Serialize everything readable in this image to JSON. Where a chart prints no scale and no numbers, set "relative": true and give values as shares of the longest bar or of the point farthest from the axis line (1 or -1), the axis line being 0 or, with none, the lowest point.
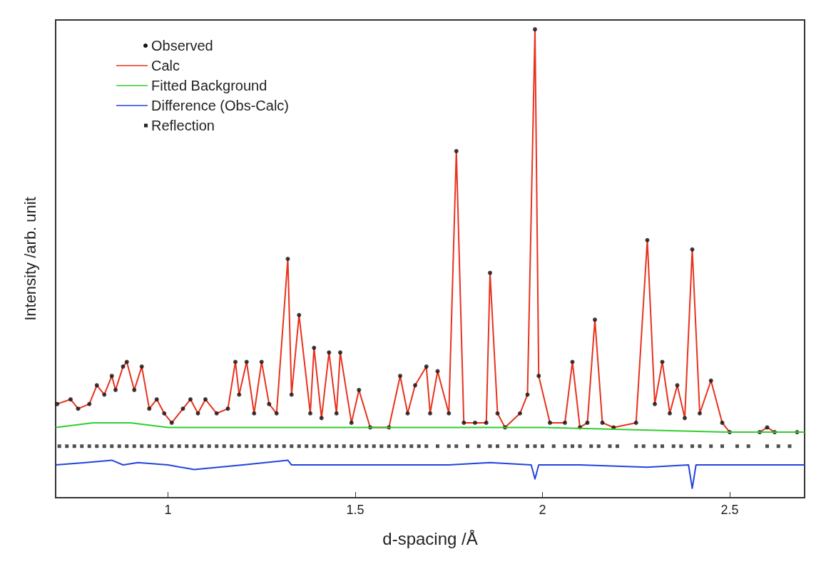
{
  "chart_data": {
    "type": "line",
    "relative": true,
    "xlabel": "d-spacing /Å",
    "ylabel": "Intensity /arb. unit",
    "xlim": [
      0.7,
      2.7
    ],
    "xticks": [
      1,
      1.5,
      2,
      2.5
    ],
    "grid": false,
    "legend": "top left",
    "tick_labels": "x",
    "series": [
      {
        "name": "Calc",
        "type": "line",
        "color": "#e8321e",
        "line_style": "solid",
        "x": [
          0.704,
          0.74,
          0.76,
          0.79,
          0.81,
          0.83,
          0.85,
          0.86,
          0.88,
          0.89,
          0.91,
          0.93,
          0.95,
          0.97,
          0.99,
          1.01,
          1.04,
          1.06,
          1.08,
          1.1,
          1.13,
          1.16,
          1.18,
          1.19,
          1.21,
          1.23,
          1.25,
          1.27,
          1.29,
          1.32,
          1.33,
          1.35,
          1.38,
          1.39,
          1.41,
          1.43,
          1.45,
          1.46,
          1.49,
          1.51,
          1.54,
          1.59,
          1.62,
          1.64,
          1.66,
          1.69,
          1.7,
          1.72,
          1.75,
          1.77,
          1.79,
          1.82,
          1.85,
          1.86,
          1.88,
          1.9,
          1.94,
          1.96,
          1.98,
          1.99,
          2.02,
          2.06,
          2.08,
          2.1,
          2.12,
          2.14,
          2.16,
          2.19,
          2.25,
          2.28,
          2.3,
          2.32,
          2.34,
          2.36,
          2.38,
          2.4,
          2.42,
          2.45,
          2.48,
          2.5,
          2.58,
          2.6,
          2.62,
          2.68
        ],
        "values": [
          0.2,
          0.21,
          0.19,
          0.2,
          0.24,
          0.22,
          0.26,
          0.23,
          0.28,
          0.29,
          0.23,
          0.28,
          0.19,
          0.21,
          0.18,
          0.16,
          0.19,
          0.21,
          0.18,
          0.21,
          0.18,
          0.19,
          0.29,
          0.22,
          0.29,
          0.18,
          0.29,
          0.2,
          0.18,
          0.51,
          0.22,
          0.39,
          0.18,
          0.32,
          0.17,
          0.31,
          0.18,
          0.31,
          0.16,
          0.23,
          0.15,
          0.15,
          0.26,
          0.18,
          0.24,
          0.28,
          0.18,
          0.27,
          0.18,
          0.74,
          0.16,
          0.16,
          0.16,
          0.48,
          0.18,
          0.15,
          0.18,
          0.22,
          1.0,
          0.26,
          0.16,
          0.16,
          0.29,
          0.15,
          0.16,
          0.38,
          0.16,
          0.15,
          0.16,
          0.55,
          0.2,
          0.29,
          0.18,
          0.24,
          0.17,
          0.53,
          0.18,
          0.25,
          0.16,
          0.14,
          0.14,
          0.15,
          0.14,
          0.14
        ]
      },
      {
        "name": "Observed",
        "type": "scatter",
        "marker": "circle",
        "color": "#111111",
        "x": [
          0.704,
          0.74,
          0.76,
          0.79,
          0.81,
          0.83,
          0.85,
          0.86,
          0.88,
          0.89,
          0.91,
          0.93,
          0.95,
          0.97,
          0.99,
          1.01,
          1.04,
          1.06,
          1.08,
          1.1,
          1.13,
          1.16,
          1.18,
          1.19,
          1.21,
          1.23,
          1.25,
          1.27,
          1.29,
          1.32,
          1.33,
          1.35,
          1.38,
          1.39,
          1.41,
          1.43,
          1.45,
          1.46,
          1.49,
          1.51,
          1.54,
          1.59,
          1.62,
          1.64,
          1.66,
          1.69,
          1.7,
          1.72,
          1.75,
          1.77,
          1.79,
          1.82,
          1.85,
          1.86,
          1.88,
          1.9,
          1.94,
          1.96,
          1.98,
          1.99,
          2.02,
          2.06,
          2.08,
          2.1,
          2.12,
          2.14,
          2.16,
          2.19,
          2.25,
          2.28,
          2.3,
          2.32,
          2.34,
          2.36,
          2.38,
          2.4,
          2.42,
          2.45,
          2.48,
          2.5,
          2.58,
          2.6,
          2.62,
          2.68
        ],
        "values": [
          0.2,
          0.21,
          0.19,
          0.2,
          0.24,
          0.22,
          0.26,
          0.23,
          0.28,
          0.29,
          0.23,
          0.28,
          0.19,
          0.21,
          0.18,
          0.16,
          0.19,
          0.21,
          0.18,
          0.21,
          0.18,
          0.19,
          0.29,
          0.22,
          0.29,
          0.18,
          0.29,
          0.2,
          0.18,
          0.51,
          0.22,
          0.39,
          0.18,
          0.32,
          0.17,
          0.31,
          0.18,
          0.31,
          0.16,
          0.23,
          0.15,
          0.15,
          0.26,
          0.18,
          0.24,
          0.28,
          0.18,
          0.27,
          0.18,
          0.74,
          0.16,
          0.16,
          0.16,
          0.48,
          0.18,
          0.15,
          0.18,
          0.22,
          1.0,
          0.26,
          0.16,
          0.16,
          0.29,
          0.15,
          0.16,
          0.38,
          0.16,
          0.15,
          0.16,
          0.55,
          0.2,
          0.29,
          0.18,
          0.24,
          0.17,
          0.53,
          0.18,
          0.25,
          0.16,
          0.14,
          0.14,
          0.15,
          0.14,
          0.14
        ]
      },
      {
        "name": "Fitted Background",
        "type": "line",
        "color": "#33cc33",
        "line_style": "solid",
        "x": [
          0.7,
          0.8,
          0.9,
          1.0,
          1.2,
          1.5,
          2.0,
          2.5,
          2.7
        ],
        "values": [
          0.15,
          0.16,
          0.16,
          0.15,
          0.15,
          0.15,
          0.15,
          0.14,
          0.14
        ]
      },
      {
        "name": "Difference (Obs-Calc)",
        "type": "line",
        "color": "#2244dd",
        "line_style": "solid",
        "x": [
          0.7,
          0.78,
          0.85,
          0.88,
          0.92,
          1.0,
          1.07,
          1.2,
          1.32,
          1.33,
          1.5,
          1.75,
          1.86,
          1.97,
          1.98,
          1.99,
          2.1,
          2.28,
          2.39,
          2.4,
          2.41,
          2.5,
          2.7
        ],
        "values": [
          0.07,
          0.075,
          0.08,
          0.07,
          0.075,
          0.07,
          0.06,
          0.07,
          0.08,
          0.07,
          0.07,
          0.07,
          0.075,
          0.07,
          0.04,
          0.07,
          0.07,
          0.065,
          0.07,
          0.02,
          0.07,
          0.07,
          0.07
        ]
      },
      {
        "name": "Reflection",
        "type": "scatter",
        "marker": "square",
        "color": "#222222",
        "x": [
          0.71,
          0.73,
          0.75,
          0.77,
          0.79,
          0.81,
          0.83,
          0.85,
          0.87,
          0.89,
          0.91,
          0.93,
          0.95,
          0.97,
          0.99,
          1.01,
          1.03,
          1.05,
          1.07,
          1.09,
          1.11,
          1.13,
          1.15,
          1.17,
          1.19,
          1.21,
          1.23,
          1.25,
          1.27,
          1.29,
          1.31,
          1.33,
          1.35,
          1.37,
          1.39,
          1.41,
          1.43,
          1.45,
          1.47,
          1.49,
          1.51,
          1.53,
          1.55,
          1.57,
          1.59,
          1.61,
          1.63,
          1.65,
          1.67,
          1.69,
          1.72,
          1.75,
          1.77,
          1.8,
          1.83,
          1.86,
          1.88,
          1.91,
          1.93,
          1.96,
          1.98,
          2.0,
          2.03,
          2.06,
          2.08,
          2.1,
          2.13,
          2.15,
          2.18,
          2.2,
          2.25,
          2.27,
          2.3,
          2.32,
          2.35,
          2.37,
          2.4,
          2.42,
          2.45,
          2.48,
          2.52,
          2.55,
          2.6,
          2.63,
          2.66
        ],
        "values": [
          0.11,
          0.11,
          0.11,
          0.11,
          0.11,
          0.11,
          0.11,
          0.11,
          0.11,
          0.11,
          0.11,
          0.11,
          0.11,
          0.11,
          0.11,
          0.11,
          0.11,
          0.11,
          0.11,
          0.11,
          0.11,
          0.11,
          0.11,
          0.11,
          0.11,
          0.11,
          0.11,
          0.11,
          0.11,
          0.11,
          0.11,
          0.11,
          0.11,
          0.11,
          0.11,
          0.11,
          0.11,
          0.11,
          0.11,
          0.11,
          0.11,
          0.11,
          0.11,
          0.11,
          0.11,
          0.11,
          0.11,
          0.11,
          0.11,
          0.11,
          0.11,
          0.11,
          0.11,
          0.11,
          0.11,
          0.11,
          0.11,
          0.11,
          0.11,
          0.11,
          0.11,
          0.11,
          0.11,
          0.11,
          0.11,
          0.11,
          0.11,
          0.11,
          0.11,
          0.11,
          0.11,
          0.11,
          0.11,
          0.11,
          0.11,
          0.11,
          0.11,
          0.11,
          0.11,
          0.11,
          0.11,
          0.11,
          0.11,
          0.11,
          0.11
        ]
      }
    ]
  }
}
